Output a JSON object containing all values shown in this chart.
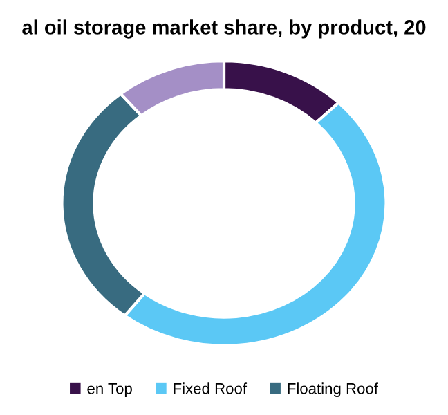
{
  "chart_data": {
    "type": "donut",
    "title": "al oil storage market share, by product, 20",
    "categories": [
      "en Top",
      "Fixed Roof",
      "Floating Roof",
      null
    ],
    "values": [
      12.5,
      48,
      28.5,
      11
    ],
    "colors": [
      "#38114a",
      "#5bc8f5",
      "#386b80",
      "#a48fc6"
    ],
    "legend": "bottom"
  }
}
